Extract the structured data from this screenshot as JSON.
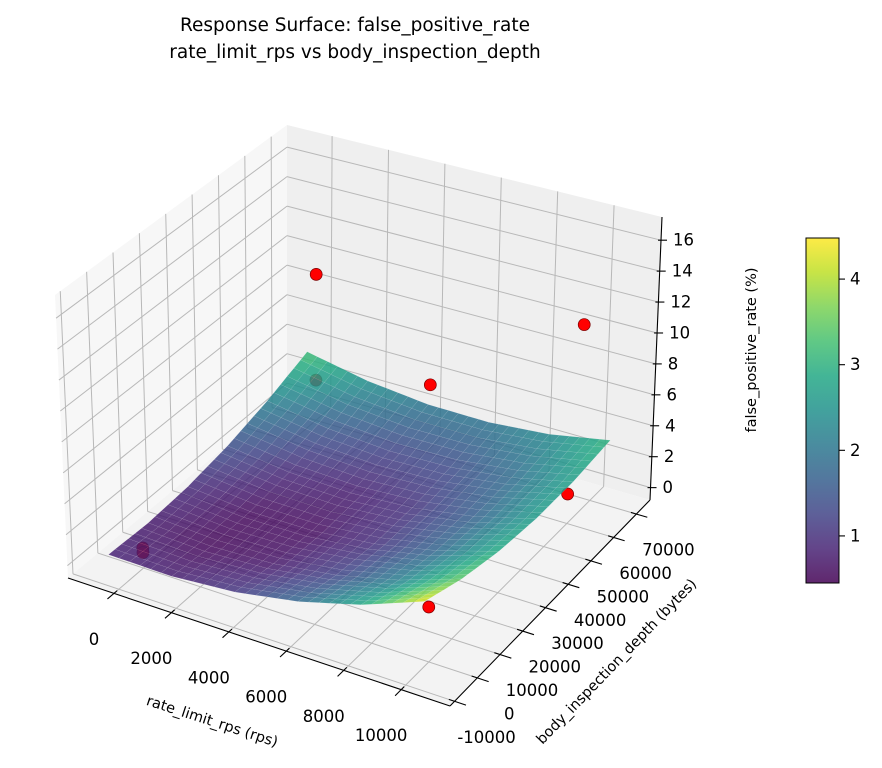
{
  "chart_data": {
    "type": "surface",
    "title": "Response Surface: false_positive_rate",
    "subtitle": "rate_limit_rps vs body_inspection_depth",
    "xlabel": "rate_limit_rps (rps)",
    "ylabel": "body_inspection_depth (bytes)",
    "zlabel": "false_positive_rate (%)",
    "xlim": [
      -1600,
      11700
    ],
    "ylim": [
      -12000,
      76000
    ],
    "zlim": [
      -0.8,
      17.5
    ],
    "xticks": [
      0,
      2000,
      4000,
      6000,
      8000,
      10000
    ],
    "yticks": [
      -10000,
      0,
      10000,
      20000,
      30000,
      40000,
      50000,
      60000,
      70000
    ],
    "zticks": [
      0,
      2,
      4,
      6,
      8,
      10,
      12,
      14,
      16
    ],
    "grid": true,
    "surface": {
      "colormap": "viridis",
      "alpha": 0.85,
      "x": [
        -500,
        1700,
        3900,
        6100,
        8300,
        10500
      ],
      "y": [
        -8000,
        8000,
        24000,
        40000,
        56000,
        72000
      ],
      "z": [
        [
          0.85,
          0.79,
          1.11,
          1.81,
          2.89,
          4.35
        ],
        [
          0.74,
          0.53,
          0.7,
          1.25,
          2.19,
          3.5
        ],
        [
          0.93,
          0.57,
          0.59,
          0.99,
          1.78,
          2.95
        ],
        [
          1.41,
          0.9,
          0.77,
          1.03,
          1.67,
          2.69
        ],
        [
          2.19,
          1.53,
          1.25,
          1.36,
          1.85,
          2.72
        ],
        [
          3.26,
          2.45,
          2.03,
          1.99,
          2.33,
          3.05
        ]
      ]
    },
    "points": [
      {
        "x": 0,
        "y": 70000,
        "z": 9.0
      },
      {
        "x": 10000,
        "y": 65000,
        "z": 11.3
      },
      {
        "x": 0,
        "y": 70000,
        "z": 1.9
      },
      {
        "x": 5000,
        "y": 60000,
        "z": 5.6
      },
      {
        "x": 10000,
        "y": 60000,
        "z": 1.1
      },
      {
        "x": 10000,
        "y": 0,
        "z": 2.6
      },
      {
        "x": 0,
        "y": 0,
        "z": 0.5
      },
      {
        "x": 0,
        "y": 0,
        "z": 0.2
      }
    ],
    "point_color": "#ff0000",
    "colorbar": {
      "label": "false_positive_rate (%)",
      "range": [
        0.45,
        4.48
      ],
      "ticks": [
        1,
        2,
        3,
        4
      ]
    }
  }
}
